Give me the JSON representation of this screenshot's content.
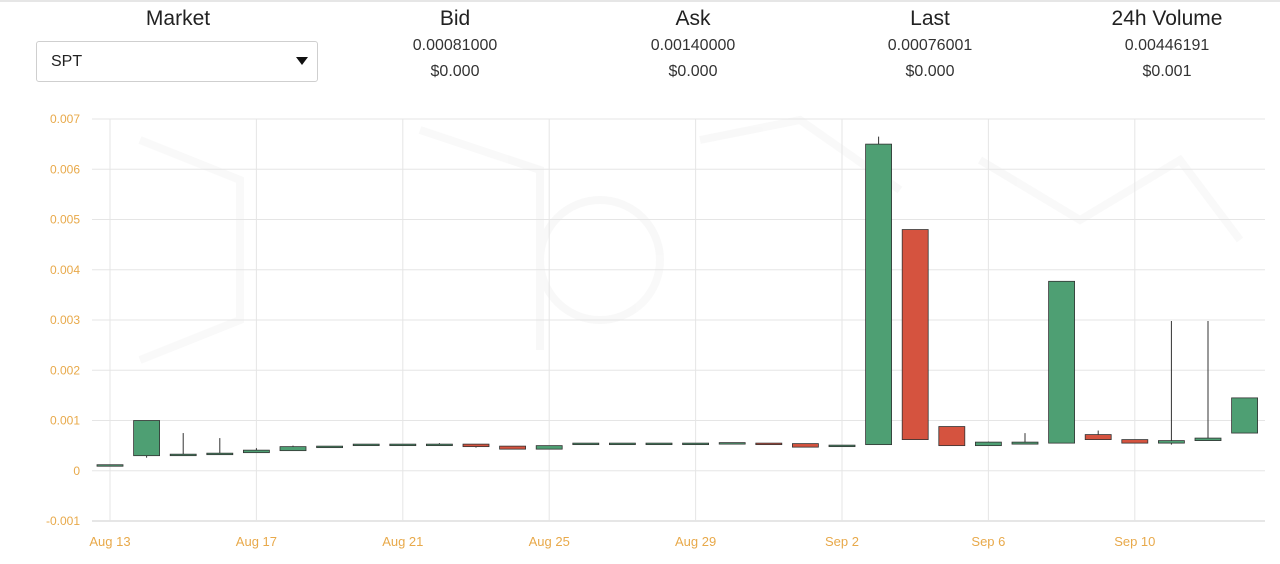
{
  "header": {
    "market": {
      "title": "Market",
      "selected": "SPT"
    },
    "bid": {
      "title": "Bid",
      "value": "0.00081000",
      "usd": "$0.000"
    },
    "ask": {
      "title": "Ask",
      "value": "0.00140000",
      "usd": "$0.000"
    },
    "last": {
      "title": "Last",
      "value": "0.00076001",
      "usd": "$0.000"
    },
    "volume": {
      "title": "24h Volume",
      "value": "0.00446191",
      "usd": "$0.001"
    }
  },
  "colors": {
    "up": "#4e9f73",
    "down": "#d5533f",
    "tick_text": "#e8a94a",
    "grid": "#e5e5e5"
  },
  "chart_data": {
    "type": "candlestick",
    "ylim": [
      -0.001,
      0.007
    ],
    "yticks": [
      "0.007",
      "0.006",
      "0.005",
      "0.004",
      "0.003",
      "0.002",
      "0.001",
      "0",
      "-0.001"
    ],
    "ytick_values": [
      0.007,
      0.006,
      0.005,
      0.004,
      0.003,
      0.002,
      0.001,
      0,
      -0.001
    ],
    "xlim": [
      "2023-08-12",
      "2023-09-12"
    ],
    "xticks": [
      {
        "label": "Aug 13",
        "date": "2023-08-13"
      },
      {
        "label": "Aug 17",
        "date": "2023-08-17"
      },
      {
        "label": "Aug 21",
        "date": "2023-08-21"
      },
      {
        "label": "Aug 25",
        "date": "2023-08-25"
      },
      {
        "label": "Aug 29",
        "date": "2023-08-29"
      },
      {
        "label": "Sep 2",
        "date": "2023-09-02"
      },
      {
        "label": "Sep 6",
        "date": "2023-09-06"
      },
      {
        "label": "Sep 10",
        "date": "2023-09-10"
      }
    ],
    "grid": true,
    "candles": [
      {
        "date": "2023-08-13",
        "open": 0.00012,
        "high": 0.00012,
        "low": 0.00012,
        "close": 0.00012
      },
      {
        "date": "2023-08-14",
        "open": 0.0003,
        "high": 0.001,
        "low": 0.00026,
        "close": 0.001
      },
      {
        "date": "2023-08-15",
        "open": 0.00032,
        "high": 0.00075,
        "low": 0.00032,
        "close": 0.00033
      },
      {
        "date": "2023-08-16",
        "open": 0.00033,
        "high": 0.00065,
        "low": 0.00032,
        "close": 0.00035
      },
      {
        "date": "2023-08-17",
        "open": 0.00036,
        "high": 0.00045,
        "low": 0.00036,
        "close": 0.00041
      },
      {
        "date": "2023-08-18",
        "open": 0.0004,
        "high": 0.0005,
        "low": 0.0004,
        "close": 0.00048
      },
      {
        "date": "2023-08-19",
        "open": 0.00048,
        "high": 0.00049,
        "low": 0.00048,
        "close": 0.00049
      },
      {
        "date": "2023-08-20",
        "open": 0.00052,
        "high": 0.00052,
        "low": 0.00052,
        "close": 0.00053
      },
      {
        "date": "2023-08-21",
        "open": 0.00052,
        "high": 0.00053,
        "low": 0.00052,
        "close": 0.00053
      },
      {
        "date": "2023-08-22",
        "open": 0.00053,
        "high": 0.00055,
        "low": 0.00052,
        "close": 0.00053
      },
      {
        "date": "2023-08-23",
        "open": 0.00053,
        "high": 0.00053,
        "low": 0.00046,
        "close": 0.00048
      },
      {
        "date": "2023-08-24",
        "open": 0.00049,
        "high": 0.00049,
        "low": 0.00043,
        "close": 0.00043
      },
      {
        "date": "2023-08-25",
        "open": 0.00043,
        "high": 0.0005,
        "low": 0.00043,
        "close": 0.0005
      },
      {
        "date": "2023-08-26",
        "open": 0.00052,
        "high": 0.00055,
        "low": 0.00052,
        "close": 0.00055
      },
      {
        "date": "2023-08-27",
        "open": 0.00054,
        "high": 0.00055,
        "low": 0.00054,
        "close": 0.00055
      },
      {
        "date": "2023-08-28",
        "open": 0.00054,
        "high": 0.00054,
        "low": 0.00054,
        "close": 0.00055
      },
      {
        "date": "2023-08-29",
        "open": 0.00054,
        "high": 0.00055,
        "low": 0.00054,
        "close": 0.00055
      },
      {
        "date": "2023-08-30",
        "open": 0.00055,
        "high": 0.00056,
        "low": 0.00055,
        "close": 0.00056
      },
      {
        "date": "2023-08-31",
        "open": 0.00055,
        "high": 0.00055,
        "low": 0.00054,
        "close": 0.00054
      },
      {
        "date": "2023-09-01",
        "open": 0.00054,
        "high": 0.00054,
        "low": 0.00047,
        "close": 0.00047
      },
      {
        "date": "2023-09-02",
        "open": 0.0005,
        "high": 0.00051,
        "low": 0.00049,
        "close": 0.00051
      },
      {
        "date": "2023-09-03",
        "open": 0.00052,
        "high": 0.00665,
        "low": 0.00052,
        "close": 0.0065
      },
      {
        "date": "2023-09-04",
        "open": 0.0048,
        "high": 0.0048,
        "low": 0.00062,
        "close": 0.00062
      },
      {
        "date": "2023-09-05",
        "open": 0.00088,
        "high": 0.00088,
        "low": 0.0005,
        "close": 0.0005
      },
      {
        "date": "2023-09-06",
        "open": 0.0005,
        "high": 0.00058,
        "low": 0.0005,
        "close": 0.00057
      },
      {
        "date": "2023-09-07",
        "open": 0.00053,
        "high": 0.00075,
        "low": 0.00053,
        "close": 0.00057
      },
      {
        "date": "2023-09-08",
        "open": 0.00055,
        "high": 0.00377,
        "low": 0.00055,
        "close": 0.00377
      },
      {
        "date": "2023-09-09",
        "open": 0.00072,
        "high": 0.0008,
        "low": 0.00062,
        "close": 0.00062
      },
      {
        "date": "2023-09-10",
        "open": 0.00062,
        "high": 0.00062,
        "low": 0.00055,
        "close": 0.00055
      },
      {
        "date": "2023-09-11",
        "open": 0.00055,
        "high": 0.00298,
        "low": 0.00052,
        "close": 0.0006
      },
      {
        "date": "2023-09-12",
        "open": 0.0006,
        "high": 0.00298,
        "low": 0.0006,
        "close": 0.00065
      },
      {
        "date": "2023-09-13",
        "open": 0.00075,
        "high": 0.00145,
        "low": 0.00075,
        "close": 0.00145
      }
    ]
  }
}
